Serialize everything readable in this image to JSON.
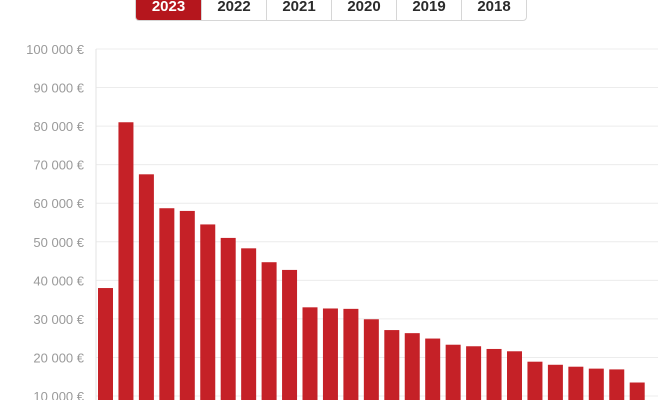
{
  "tabs": {
    "items": [
      "2023",
      "2022",
      "2021",
      "2020",
      "2019",
      "2018"
    ],
    "active_index": 0
  },
  "colors": {
    "accent": "#b5161d",
    "bar": "#c52127",
    "grid": "#ececec",
    "tick_text": "#9a9a9a"
  },
  "chart_data": {
    "type": "bar",
    "y_tick_labels": [
      "10 000 €",
      "20 000 €",
      "30 000 €",
      "40 000 €",
      "50 000 €",
      "60 000 €",
      "70 000 €",
      "80 000 €",
      "90 000 €",
      "100 000 €"
    ],
    "y_ticks": [
      10000,
      20000,
      30000,
      40000,
      50000,
      60000,
      70000,
      80000,
      90000,
      100000
    ],
    "values": [
      38000,
      81000,
      67500,
      58700,
      58000,
      54500,
      51000,
      48300,
      44700,
      42700,
      33000,
      32700,
      32600,
      29900,
      27100,
      26300,
      24900,
      23300,
      22900,
      22200,
      21600,
      18900,
      18100,
      17600,
      17100,
      16900,
      13500
    ],
    "ylim": [
      0,
      100000
    ],
    "grid": true
  }
}
